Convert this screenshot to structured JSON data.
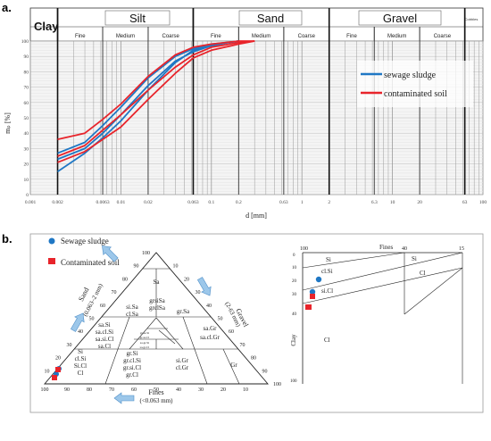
{
  "panel_a": {
    "label": "a.",
    "size_classes": {
      "clay": "Clay",
      "silt": "Silt",
      "sand": "Sand",
      "gravel": "Gravel",
      "cobbles": "Cobbles",
      "silt_sub": [
        "Fine",
        "Medium",
        "Coarse"
      ],
      "sand_sub": [
        "Fine",
        "Medium",
        "Coarse"
      ],
      "gravel_sub": [
        "Fine",
        "Medium",
        "Coarse"
      ]
    },
    "x_tick_labels": [
      "0.001",
      "0.002",
      "0.0063",
      "0.01",
      "0.02",
      "0.063",
      "0.1",
      "0.2",
      "0.63",
      "1",
      "2",
      "6.3",
      "10",
      "20",
      "63",
      "100"
    ],
    "y_tick_labels": [
      "0",
      "10",
      "20",
      "30",
      "40",
      "50",
      "60",
      "70",
      "80",
      "90",
      "100"
    ],
    "xlabel": "d [mm]",
    "ylabel": "mₚ [%]",
    "legend": [
      "sewage sludge",
      "contaminated soil"
    ]
  },
  "chart_data": [
    {
      "type": "line",
      "xscale": "log",
      "xlim": [
        0.001,
        100
      ],
      "ylim": [
        0,
        100
      ],
      "xlabel": "d [mm]",
      "ylabel": "mₚ [%]",
      "grid": true,
      "legend_position": "right",
      "series": [
        {
          "name": "sewage sludge",
          "color": "#1f77c4",
          "x": [
            0.002,
            0.004,
            0.0063,
            0.01,
            0.02,
            0.04,
            0.063,
            0.1,
            0.15,
            0.2
          ],
          "y": [
            15,
            27,
            37,
            48,
            68,
            86,
            94,
            97,
            99,
            100
          ]
        },
        {
          "name": "sewage sludge",
          "color": "#1f77c4",
          "x": [
            0.002,
            0.004,
            0.0063,
            0.01,
            0.02,
            0.04,
            0.063,
            0.1,
            0.15,
            0.2
          ],
          "y": [
            23,
            30,
            40,
            52,
            71,
            87,
            93,
            97,
            99,
            100
          ]
        },
        {
          "name": "sewage sludge",
          "color": "#1f77c4",
          "x": [
            0.002,
            0.004,
            0.0063,
            0.01,
            0.02,
            0.04,
            0.063,
            0.1,
            0.15,
            0.2
          ],
          "y": [
            27,
            34,
            45,
            57,
            76,
            90,
            95,
            98,
            99,
            100
          ]
        },
        {
          "name": "contaminated soil",
          "color": "#e8242b",
          "x": [
            0.002,
            0.004,
            0.0063,
            0.01,
            0.02,
            0.04,
            0.063,
            0.1,
            0.2,
            0.3
          ],
          "y": [
            21,
            28,
            36,
            44,
            62,
            79,
            89,
            94,
            98,
            100
          ]
        },
        {
          "name": "contaminated soil",
          "color": "#e8242b",
          "x": [
            0.002,
            0.004,
            0.0063,
            0.01,
            0.02,
            0.04,
            0.063,
            0.1,
            0.2,
            0.3
          ],
          "y": [
            25,
            32,
            42,
            52,
            68,
            83,
            91,
            96,
            99,
            100
          ]
        },
        {
          "name": "contaminated soil",
          "color": "#e8242b",
          "x": [
            0.002,
            0.004,
            0.0063,
            0.01,
            0.02,
            0.04,
            0.063,
            0.1,
            0.2,
            0.3
          ],
          "y": [
            36,
            40,
            49,
            59,
            77,
            91,
            96,
            98,
            100,
            100
          ]
        }
      ]
    },
    {
      "type": "scatter",
      "legend": [
        "Sewage sludge",
        "Contaminated soil"
      ],
      "series": [
        {
          "name": "Sewage sludge",
          "marker": "circle",
          "color": "#1f77c4",
          "points": [
            {
              "fines": 96,
              "sand": 3,
              "gravel": 1
            },
            {
              "fines": 94,
              "sand": 5,
              "gravel": 1
            }
          ]
        },
        {
          "name": "Contaminated soil",
          "marker": "square",
          "color": "#e8242b",
          "points": [
            {
              "fines": 97,
              "sand": 2,
              "gravel": 1
            },
            {
              "fines": 95,
              "sand": 4,
              "gravel": 1
            }
          ]
        }
      ]
    }
  ],
  "panel_b": {
    "label": "b.",
    "legend": [
      "Sewage sludge",
      "Contaminated soil"
    ],
    "axis_sand": [
      "Sand",
      "(0.063–2 mm)"
    ],
    "axis_gravel": [
      "Gravel",
      "(2-63 mm)"
    ],
    "axis_fines": [
      "Fines",
      "(<0.063 mm)"
    ],
    "tri_ticks": [
      "10",
      "20",
      "30",
      "40",
      "50",
      "60",
      "70",
      "80",
      "90",
      "100"
    ],
    "regions": {
      "sa": "Sa",
      "si_sa": [
        "si.Sa",
        "cl.Sa"
      ],
      "gr_sa": "gr.Sa",
      "grsisa": [
        "grsiSa",
        "grclSa"
      ],
      "sa_si": [
        "sa.Si",
        "sa.cl.Si",
        "sa.si.Cl",
        "sa.Cl"
      ],
      "sa_gr": [
        "sa.Gr",
        "sa.cl.Gr"
      ],
      "tiny": [
        "gr.sa.Si",
        "gr.sa.Cl",
        "sa.gr.Si",
        "sa.gr.Cl"
      ],
      "si": [
        "Si",
        "cl.Si",
        "Si.Cl",
        "Cl"
      ],
      "gr_si": [
        "gr.Si",
        "gr.cl.Si",
        "gr.si.Cl",
        "gr.Cl"
      ],
      "si_gr": [
        "si.Gr",
        "cl.Gr"
      ],
      "gr": "Gr"
    },
    "plasticity": {
      "fines_label": "Fines",
      "clay_label": "Clay",
      "top_ticks": [
        "100",
        "40",
        "15"
      ],
      "left_ticks": [
        "0",
        "10",
        "20",
        "30",
        "40",
        "100"
      ],
      "regions": {
        "si": "Si",
        "si2": "Si",
        "cl_si": "cl.Si",
        "si_cl": "si.Cl",
        "cl": "Cl",
        "cl2": "Cl"
      }
    }
  }
}
